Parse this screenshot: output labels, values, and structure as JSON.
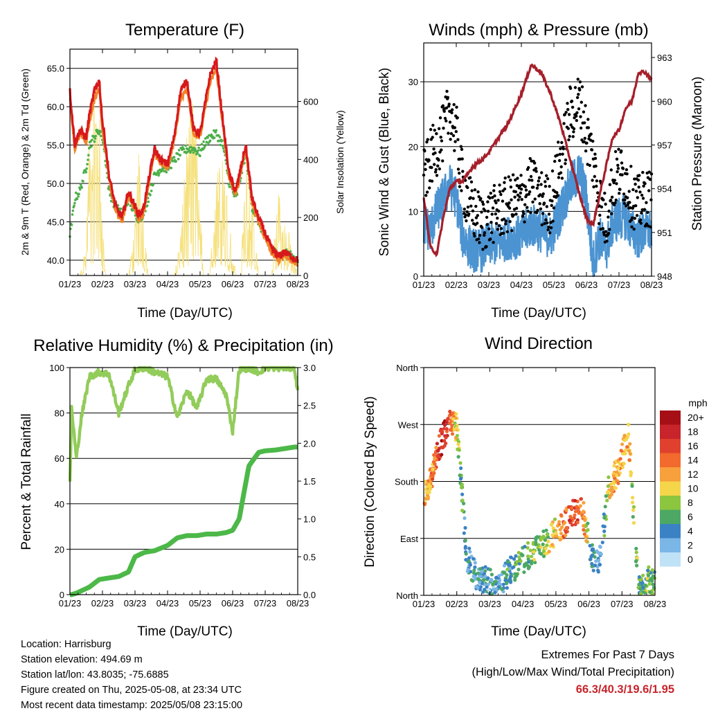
{
  "colors": {
    "temp2m": "#d7191c",
    "temp9m": "#f0832a",
    "dewpoint": "#4daf4a",
    "solar": "#f5e07a",
    "gust": "#000000",
    "sonic_wind": "#4b93d1",
    "pressure": "#a51f2a",
    "rh": "#92cc5a",
    "rain": "#4cb848",
    "grid": "#000000",
    "extremes_values": "#c8242b"
  },
  "x_tick_labels": [
    "01/23",
    "02/23",
    "03/23",
    "04/23",
    "05/23",
    "06/23",
    "07/23",
    "08/23"
  ],
  "charts": {
    "temperature": {
      "title": "Temperature (F)",
      "xlabel": "Time (Day/UTC)",
      "ylabel_left": "2m & 9m T (Red, Orange) & 2m Td (Green)",
      "ylabel_right": "Solar Insolation (Yellow)",
      "left_ticks": [
        "65.0",
        "60.0",
        "55.0",
        "50.0",
        "45.0",
        "40.0"
      ],
      "right_ticks": [
        "600",
        "400",
        "200",
        "0"
      ]
    },
    "winds": {
      "title": "Winds (mph) & Pressure (mb)",
      "xlabel": "Time (Day/UTC)",
      "ylabel_left": "Sonic Wind & Gust (Blue, Black)",
      "ylabel_right": "Station Pressure (Maroon)",
      "left_ticks": [
        "30",
        "20",
        "10",
        "0"
      ],
      "right_ticks": [
        "963",
        "960",
        "957",
        "954",
        "951",
        "948"
      ]
    },
    "humidity": {
      "title": "Relative Humidity (%) & Precipitation (in)",
      "xlabel": "Time (Day/UTC)",
      "ylabel_left": "Percent & Total Rainfall",
      "left_ticks": [
        "100",
        "80",
        "60",
        "40",
        "20",
        "0"
      ],
      "right_ticks": [
        "3.0",
        "2.5",
        "2.0",
        "1.5",
        "1.0",
        "0.5",
        "0.0"
      ]
    },
    "direction": {
      "title": "Wind Direction",
      "xlabel": "Time (Day/UTC)",
      "ylabel_left": "Direction (Colored By Speed)",
      "left_ticks": [
        "North",
        "West",
        "South",
        "East",
        "North"
      ],
      "colorbar_title": "mph",
      "colorbar_labels": [
        "20+",
        "18",
        "16",
        "14",
        "12",
        "10",
        "8",
        "6",
        "4",
        "2",
        "0"
      ],
      "colorbar_colors": [
        "#a50f15",
        "#c8242b",
        "#e0402e",
        "#f26a2d",
        "#f7a03c",
        "#f5d54a",
        "#8cc63f",
        "#4ca864",
        "#3b82c4",
        "#7ab6e6",
        "#bfe2f7"
      ]
    }
  },
  "chart_data": [
    {
      "type": "line",
      "title": "Temperature (F)",
      "xlabel": "Time (Day/UTC)",
      "ylabel": "2m & 9m T (Red, Orange) & 2m Td (Green)",
      "y2label": "Solar Insolation (Yellow)",
      "ylim": [
        38,
        67.5
      ],
      "y2lim": [
        0,
        780
      ],
      "x": [
        0,
        0.15,
        0.3,
        0.5,
        0.6,
        0.75,
        0.9,
        1.0,
        1.1,
        1.2,
        1.4,
        1.6,
        1.8,
        2.0,
        2.1,
        2.25,
        2.4,
        2.6,
        2.8,
        3.0,
        3.2,
        3.4,
        3.6,
        3.8,
        4.0,
        4.1,
        4.3,
        4.5,
        4.7,
        4.9,
        5.1,
        5.25,
        5.4,
        5.6,
        5.8,
        6.0,
        6.2,
        6.4,
        6.6,
        6.8,
        7.0
      ],
      "x_labels": [
        "01/23",
        "02/23",
        "03/23",
        "04/23",
        "05/23",
        "06/23",
        "07/23",
        "08/23"
      ],
      "series": [
        {
          "values": [
            62,
            55,
            57,
            56,
            59,
            62,
            63.5,
            58,
            55,
            51,
            47,
            45.5,
            49,
            47,
            46,
            46.5,
            50,
            54.5,
            53,
            52.5,
            56,
            62,
            63.5,
            57,
            56.5,
            59,
            64,
            66,
            58,
            51,
            49,
            52,
            55,
            48,
            45.5,
            43.5,
            41.5,
            40.5,
            41,
            40.5,
            40
          ]
        },
        {
          "values": [
            61,
            54.5,
            56.5,
            55.5,
            58,
            61,
            62.5,
            57,
            54,
            50.5,
            46.5,
            45,
            48.5,
            46.5,
            45.5,
            46,
            49.5,
            54,
            52.5,
            52,
            55.5,
            61,
            62.5,
            56.5,
            56,
            58.5,
            63,
            65,
            57.5,
            50.5,
            48.5,
            51.5,
            54.5,
            47.5,
            45,
            43,
            41,
            40,
            40.5,
            40,
            39.5
          ]
        },
        {
          "values": [
            43,
            48,
            49,
            52,
            55,
            56,
            57,
            56,
            53,
            49,
            47,
            46,
            48,
            46,
            45.5,
            46,
            48,
            51,
            52,
            52,
            53,
            54,
            54.5,
            54.5,
            54,
            55,
            56,
            56.5,
            55,
            50,
            48,
            51,
            54,
            47,
            45,
            43,
            41.5,
            40.5,
            41,
            40.5,
            40
          ]
        }
      ],
      "series2_values": [
        0,
        0,
        0,
        120,
        500,
        720,
        600,
        200,
        0,
        0,
        0,
        0,
        0,
        180,
        430,
        300,
        0,
        0,
        0,
        0,
        0,
        150,
        520,
        620,
        300,
        0,
        0,
        480,
        560,
        200,
        0,
        0,
        480,
        300,
        0,
        0,
        0,
        300,
        240,
        100,
        0
      ]
    },
    {
      "type": "line",
      "title": "Winds (mph) & Pressure (mb)",
      "xlabel": "Time (Day/UTC)",
      "ylabel": "Sonic Wind & Gust (Blue, Black)",
      "y2label": "Station Pressure (Maroon)",
      "ylim": [
        0,
        36
      ],
      "y2lim": [
        948,
        964
      ],
      "x": [
        0,
        0.2,
        0.4,
        0.6,
        0.8,
        1.0,
        1.2,
        1.5,
        1.8,
        2.0,
        2.3,
        2.6,
        3.0,
        3.3,
        3.6,
        3.9,
        4.2,
        4.5,
        4.8,
        5.0,
        5.2,
        5.4,
        5.6,
        5.8,
        6.0,
        6.2,
        6.4,
        6.6,
        6.8,
        7.0
      ],
      "x_labels": [
        "01/23",
        "02/23",
        "03/23",
        "04/23",
        "05/23",
        "06/23",
        "07/23",
        "08/23"
      ],
      "series": [
        {
          "values": [
            15,
            18,
            20,
            22,
            26,
            22,
            14,
            10,
            8,
            9,
            10,
            11,
            12,
            14,
            12,
            11,
            18,
            25,
            27,
            22,
            18,
            12,
            8,
            14,
            16,
            15,
            12,
            11,
            12,
            12
          ]
        },
        {
          "values": [
            8,
            7,
            10,
            12,
            14,
            12,
            6,
            4,
            4,
            5,
            5,
            6,
            6,
            8,
            7,
            6,
            10,
            14,
            16,
            12,
            2,
            6,
            4,
            8,
            9,
            9,
            7,
            6,
            7,
            7
          ]
        }
      ],
      "series2_values": [
        953.5,
        950,
        949.5,
        952,
        954,
        954.5,
        954.5,
        955.5,
        956,
        956.5,
        957.5,
        958.5,
        960.5,
        962.5,
        962,
        960.5,
        958.5,
        956,
        953.5,
        952,
        951.5,
        953.5,
        955.5,
        957.5,
        958,
        959.5,
        960,
        962,
        962,
        961.5
      ]
    },
    {
      "type": "line",
      "title": "Relative Humidity (%) & Precipitation (in)",
      "xlabel": "Time (Day/UTC)",
      "ylabel": "Percent & Total Rainfall",
      "ylim": [
        0,
        100
      ],
      "y2lim": [
        0,
        3
      ],
      "x": [
        0,
        0.05,
        0.2,
        0.35,
        0.6,
        0.9,
        1.2,
        1.5,
        1.8,
        2.0,
        2.3,
        2.6,
        3.0,
        3.3,
        3.6,
        3.9,
        4.2,
        4.5,
        4.8,
        5.0,
        5.2,
        5.5,
        5.8,
        6.0,
        6.3,
        6.6,
        6.9,
        7.0
      ],
      "x_labels": [
        "01/23",
        "02/23",
        "03/23",
        "04/23",
        "05/23",
        "06/23",
        "07/23",
        "08/23"
      ],
      "series": [
        {
          "values": [
            49,
            82,
            60,
            78,
            96,
            98,
            97,
            80,
            92,
            99,
            100,
            98,
            96,
            78,
            90,
            82,
            95,
            95,
            88,
            72,
            99,
            100,
            98,
            100,
            100,
            100,
            100,
            89
          ]
        },
        {
          "values": [
            0,
            0,
            0.02,
            0.05,
            0.1,
            0.2,
            0.22,
            0.24,
            0.3,
            0.5,
            0.56,
            0.58,
            0.65,
            0.75,
            0.78,
            0.78,
            0.8,
            0.8,
            0.82,
            0.85,
            1.0,
            1.7,
            1.88,
            1.9,
            1.91,
            1.93,
            1.95,
            1.95
          ]
        }
      ]
    },
    {
      "type": "scatter",
      "title": "Wind Direction",
      "xlabel": "Time (Day/UTC)",
      "ylabel": "Direction (Colored By Speed)",
      "ylim": [
        0,
        360
      ],
      "y_tick_labels": [
        "North",
        "East",
        "South",
        "West",
        "North"
      ],
      "x_labels": [
        "01/23",
        "02/23",
        "03/23",
        "04/23",
        "05/23",
        "06/23",
        "07/23",
        "08/23"
      ],
      "x": [
        0,
        0.2,
        0.4,
        0.6,
        0.8,
        1.0,
        1.3,
        1.6,
        2.0,
        2.3,
        2.6,
        3.0,
        3.3,
        3.6,
        3.9,
        4.2,
        4.5,
        4.8,
        5.1,
        5.3,
        5.6,
        5.9,
        6.2,
        6.5,
        6.8,
        7.0
      ],
      "values": [
        150,
        185,
        220,
        255,
        270,
        265,
        60,
        30,
        20,
        15,
        40,
        55,
        70,
        80,
        95,
        110,
        130,
        135,
        60,
        45,
        170,
        200,
        255,
        10,
        25,
        15
      ],
      "speeds": [
        11,
        12,
        15,
        18,
        16,
        8,
        4,
        4,
        3,
        4,
        5,
        6,
        7,
        8,
        10,
        14,
        16,
        14,
        4,
        2,
        10,
        12,
        11,
        6,
        7,
        7
      ]
    }
  ],
  "footer": {
    "location": "Location: Harrisburg",
    "elevation": "Station elevation: 494.69 m",
    "latlon": "Station lat/lon: 43.8035; -75.6885",
    "created": "Figure created on Thu, 2025-05-08, at 23:34 UTC",
    "recent": "Most recent data timestamp: 2025/05/08 23:15:00"
  },
  "extremes": {
    "title": "Extremes For Past 7 Days",
    "subtitle": "(High/Low/Max Wind/Total Precipitation)",
    "values": "66.3/40.3/19.6/1.95"
  }
}
